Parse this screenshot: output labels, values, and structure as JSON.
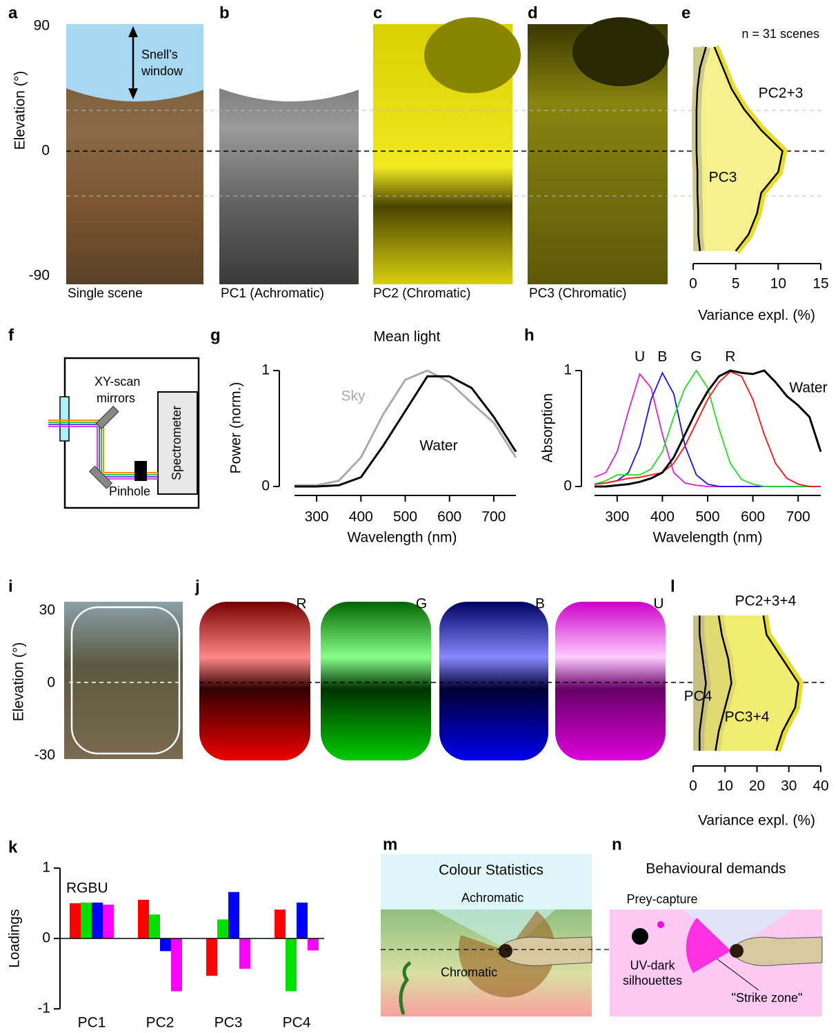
{
  "panels": {
    "a": {
      "label": "a",
      "caption": "Single scene",
      "annotation_lines": [
        "Snell’s",
        "window"
      ],
      "ylabel": "Elevation (°)",
      "ylim": [
        -90,
        90
      ],
      "yticks": [
        90,
        0,
        -90
      ]
    },
    "b": {
      "label": "b",
      "caption": "PC1 (Achromatic)"
    },
    "c": {
      "label": "c",
      "caption": "PC2 (Chromatic)"
    },
    "d": {
      "label": "d",
      "caption": "PC3 (Chromatic)"
    },
    "e": {
      "label": "e",
      "note": "n = 31 scenes",
      "xlabel": "Variance expl. (%)",
      "xlim": [
        0,
        15
      ],
      "xticks": [
        0,
        5,
        10,
        15
      ],
      "elevation": [
        75,
        60,
        45,
        30,
        15,
        0,
        -15,
        -30,
        -45,
        -60,
        -72
      ],
      "series": [
        {
          "name": "PC2+3",
          "color": "#000000",
          "fill": "#f5f08c",
          "band": "#e8dc2c",
          "values": [
            2.5,
            3.5,
            4.5,
            6,
            8,
            10.5,
            10,
            8,
            7.5,
            6.5,
            5
          ]
        },
        {
          "name": "PC3",
          "color": "#000000",
          "fill": "#cfc88a",
          "band": "#cfc88a",
          "values": [
            1.5,
            0.8,
            0.5,
            0.4,
            0.4,
            0.4,
            0.5,
            0.5,
            0.6,
            0.6,
            0.8
          ]
        }
      ]
    },
    "f": {
      "label": "f",
      "mirror_lines": [
        "XY-scan",
        "mirrors"
      ],
      "spectrometer": "Spectrometer",
      "pinhole": "Pinhole"
    },
    "g": {
      "label": "g",
      "title": "Mean light",
      "ylabel": "Power (norm.)",
      "xlabel": "Wavelength (nm)",
      "xlim": [
        250,
        750
      ],
      "ylim": [
        0,
        1
      ],
      "xticks": [
        300,
        400,
        500,
        600,
        700
      ],
      "yticks": [
        0,
        1
      ],
      "wavelength": [
        250,
        300,
        350,
        400,
        450,
        500,
        550,
        600,
        650,
        700,
        750
      ],
      "series": [
        {
          "name": "Sky",
          "color": "#aaaaaa",
          "values": [
            0.01,
            0.01,
            0.05,
            0.25,
            0.62,
            0.92,
            1,
            0.9,
            0.72,
            0.55,
            0.25
          ]
        },
        {
          "name": "Water",
          "color": "#000000",
          "values": [
            0,
            0,
            0.01,
            0.08,
            0.35,
            0.65,
            0.95,
            0.95,
            0.85,
            0.6,
            0.3
          ]
        }
      ]
    },
    "h": {
      "label": "h",
      "ylabel": "Absorption",
      "xlabel": "Wavelength (nm)",
      "xlim": [
        250,
        750
      ],
      "ylim": [
        0,
        1
      ],
      "xticks": [
        300,
        400,
        500,
        600,
        700
      ],
      "yticks": [
        0,
        1
      ],
      "wavelength": [
        250,
        275,
        300,
        325,
        350,
        375,
        400,
        425,
        450,
        475,
        500,
        525,
        550,
        575,
        600,
        625,
        650,
        675,
        700,
        725,
        750
      ],
      "series": [
        {
          "name": "U",
          "color": "#e020d0",
          "values": [
            0.08,
            0.12,
            0.3,
            0.65,
            0.97,
            0.85,
            0.45,
            0.12,
            0.03,
            0.01,
            0,
            0,
            0,
            0,
            0,
            0,
            0,
            0,
            0,
            0,
            0
          ]
        },
        {
          "name": "B",
          "color": "#1010ff",
          "values": [
            0.02,
            0.03,
            0.05,
            0.12,
            0.35,
            0.75,
            0.98,
            0.8,
            0.35,
            0.1,
            0.02,
            0,
            0,
            0,
            0,
            0,
            0,
            0,
            0,
            0,
            0
          ]
        },
        {
          "name": "G",
          "color": "#20e020",
          "values": [
            0.02,
            0.05,
            0.1,
            0.1,
            0.1,
            0.15,
            0.3,
            0.6,
            0.85,
            1,
            0.85,
            0.5,
            0.2,
            0.06,
            0.02,
            0,
            0,
            0,
            0,
            0,
            0
          ]
        },
        {
          "name": "R",
          "color": "#ff1010",
          "values": [
            0.02,
            0.03,
            0.05,
            0.07,
            0.08,
            0.1,
            0.12,
            0.2,
            0.35,
            0.55,
            0.75,
            0.9,
            0.99,
            0.95,
            0.75,
            0.45,
            0.2,
            0.07,
            0.02,
            0,
            0
          ]
        },
        {
          "name": "Water",
          "color": "#000000",
          "values": [
            0,
            0,
            0.01,
            0.02,
            0.04,
            0.07,
            0.12,
            0.25,
            0.45,
            0.65,
            0.82,
            0.95,
            1,
            0.98,
            0.97,
            1,
            0.9,
            0.78,
            0.7,
            0.6,
            0.3
          ]
        }
      ]
    },
    "i": {
      "label": "i",
      "ylabel": "Elevation (°)",
      "ylim": [
        -30,
        30
      ],
      "yticks": [
        30,
        0,
        -30
      ]
    },
    "j": {
      "label": "j",
      "channels": [
        "R",
        "G",
        "B",
        "U"
      ]
    },
    "k": {
      "label": "k",
      "ylabel": "Loadings",
      "legend_text": "RGBU",
      "ylim": [
        -1,
        1
      ],
      "yticks": [
        1,
        0,
        -1
      ],
      "categories": [
        "PC1",
        "PC2",
        "PC3",
        "PC4"
      ],
      "series": [
        {
          "color": "#ff0000",
          "values": [
            0.5,
            0.55,
            -0.53,
            0.41
          ]
        },
        {
          "color": "#00e000",
          "values": [
            0.51,
            0.34,
            0.27,
            -0.75
          ]
        },
        {
          "color": "#0000ff",
          "values": [
            0.51,
            -0.18,
            0.66,
            0.51
          ]
        },
        {
          "color": "#ff00ff",
          "values": [
            0.48,
            -0.75,
            -0.43,
            -0.17
          ]
        }
      ]
    },
    "l": {
      "label": "l",
      "xlabel": "Variance expl. (%)",
      "xlim": [
        0,
        40
      ],
      "xticks": [
        0,
        10,
        20,
        30,
        40
      ],
      "elevation": [
        28,
        20,
        10,
        0,
        -10,
        -20,
        -28
      ],
      "series": [
        {
          "name": "PC2+3+4",
          "color": "#000000",
          "fill": "#f2ec70",
          "band": "#e6dc2a",
          "values": [
            22,
            23,
            28,
            33,
            32,
            28,
            26
          ]
        },
        {
          "name": "PC3+4",
          "color": "#000000",
          "fill": "#e0d870",
          "band": "#e0d870",
          "values": [
            8,
            9,
            11,
            12,
            10,
            8,
            7
          ]
        },
        {
          "name": "PC4",
          "color": "#000000",
          "fill": "#c8c080",
          "band": "#c8c080",
          "values": [
            2,
            2,
            3,
            4,
            3,
            2,
            2
          ]
        }
      ]
    },
    "m": {
      "label": "m",
      "title": "Colour Statistics",
      "top": "Achromatic",
      "bottom": "Chromatic"
    },
    "n": {
      "label": "n",
      "title": "Behavioural demands",
      "prey": "Prey-capture",
      "silhouette_lines": [
        "UV-dark",
        "silhouettes"
      ],
      "strike": "\"Strike zone\""
    }
  }
}
